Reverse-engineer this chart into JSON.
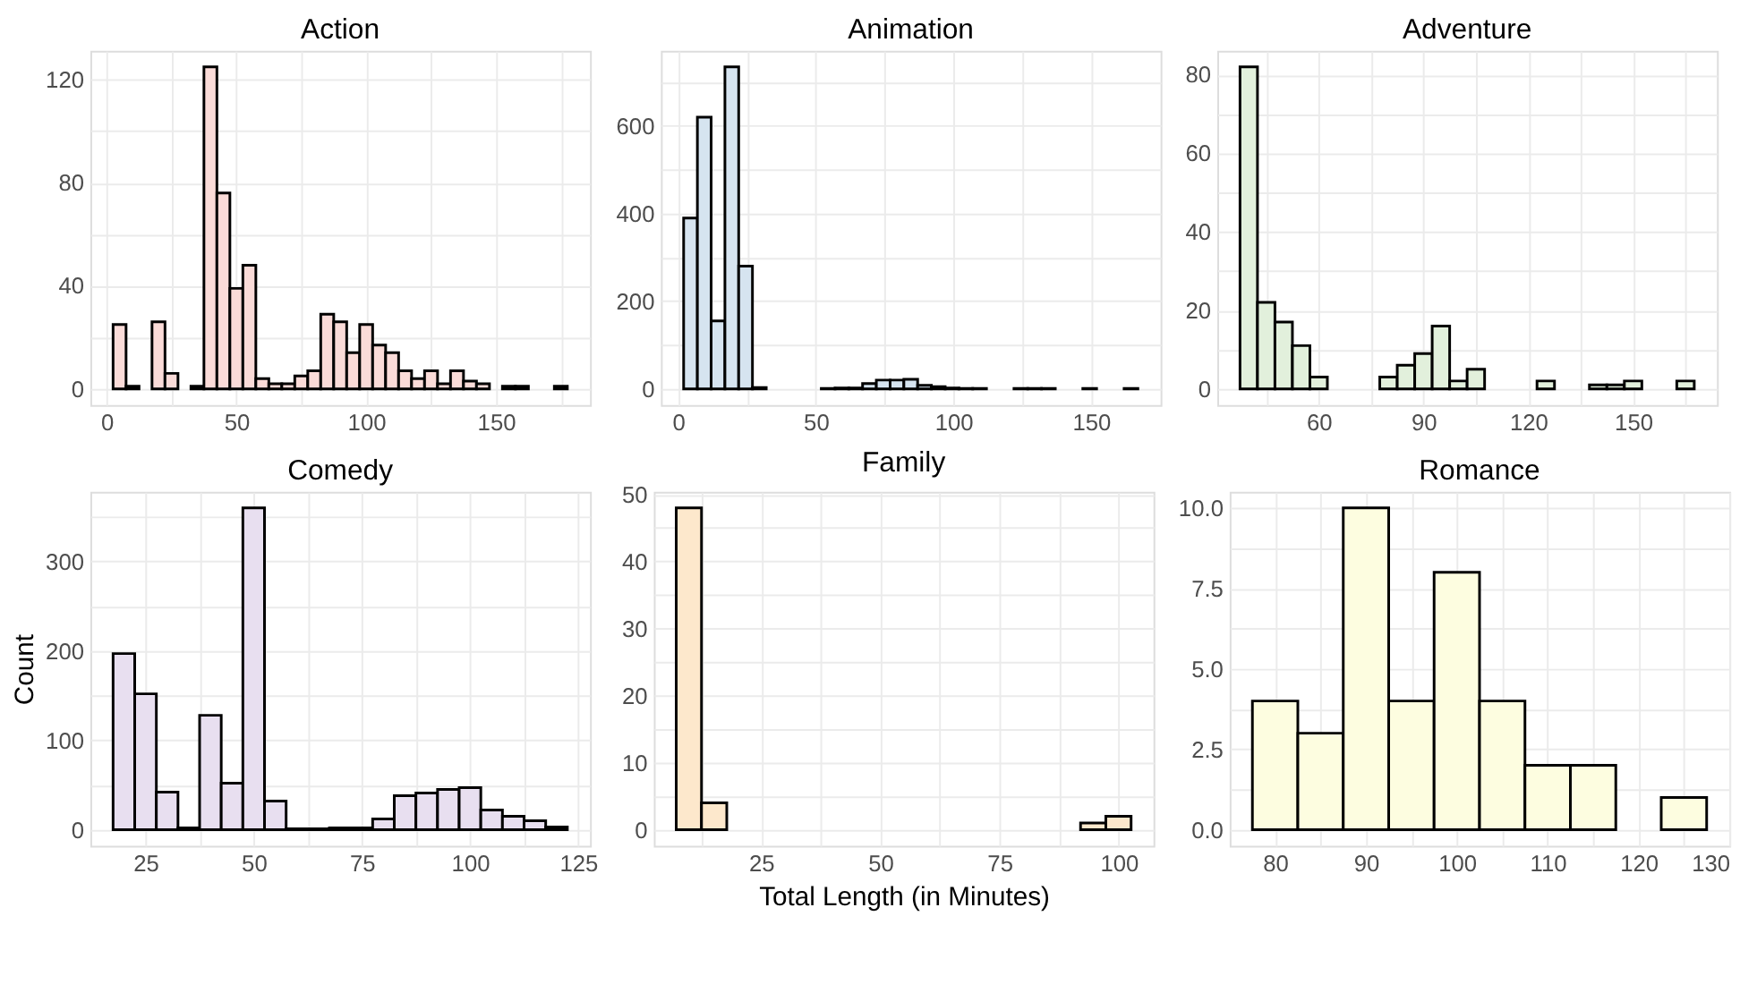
{
  "chart_data": [
    {
      "type": "histogram",
      "title": "Action",
      "color": "#fadbd8",
      "grid": true,
      "bins": [
        2.5,
        7.5,
        12.5,
        17.5,
        22.5,
        27.5,
        32.5,
        37.5,
        42.5,
        47.5,
        52.5,
        57.5,
        62.5,
        67.5,
        72.5,
        77.5,
        82.5,
        87.5,
        92.5,
        97.5,
        102.5,
        107.5,
        112.5,
        117.5,
        122.5,
        127.5,
        132.5,
        137.5,
        142.5,
        147.5,
        152.5,
        157.5,
        162.5,
        167.5,
        172.5,
        177.5
      ],
      "values": [
        25,
        1,
        0,
        26,
        6,
        0,
        1,
        125,
        76,
        39,
        48,
        4,
        2,
        2,
        5,
        7,
        29,
        26,
        14,
        25,
        17,
        14,
        7,
        4,
        7,
        2,
        7,
        3,
        2,
        0,
        1,
        1,
        0,
        0,
        1
      ],
      "xlim": [
        -6.25,
        186.25
      ],
      "xticks": [
        0,
        {
          "value": 25,
          "label": null
        },
        50,
        {
          "value": 75,
          "label": null
        },
        100,
        {
          "value": 125,
          "label": null
        },
        150,
        {
          "value": 175,
          "label": null
        }
      ],
      "ylim": [
        -6.25,
        131.25
      ],
      "yticks": [
        0,
        {
          "value": 20,
          "label": null
        },
        40,
        {
          "value": 60,
          "label": null
        },
        80,
        {
          "value": 100,
          "label": null
        },
        120
      ]
    },
    {
      "type": "histogram",
      "title": "Animation",
      "color": "#d6e4f0",
      "grid": true,
      "bins": [
        2,
        7,
        12,
        17,
        22,
        27,
        32,
        37,
        42,
        47,
        52,
        57,
        62,
        67,
        72,
        77,
        82,
        87,
        92,
        97,
        102,
        107,
        112,
        117,
        122,
        127,
        132,
        137,
        142,
        147,
        152,
        157,
        162,
        167
      ],
      "values": [
        390,
        620,
        155,
        735,
        280,
        3,
        0,
        0,
        0,
        0,
        1,
        2,
        2,
        12,
        20,
        20,
        22,
        8,
        5,
        2,
        1,
        1,
        0,
        0,
        1,
        1,
        1,
        0,
        0,
        1,
        0,
        0,
        1
      ],
      "xlim": [
        -6.25,
        175.25
      ],
      "xticks": [
        0,
        {
          "value": 25,
          "label": null
        },
        50,
        {
          "value": 75,
          "label": null
        },
        100,
        {
          "value": 125,
          "label": null
        },
        150
      ],
      "ylim": [
        -36.75,
        771.75
      ],
      "yticks": [
        0,
        {
          "value": 100,
          "label": null
        },
        200,
        {
          "value": 300,
          "label": null
        },
        400,
        {
          "value": 500,
          "label": null
        },
        600,
        {
          "value": 700,
          "label": null
        }
      ]
    },
    {
      "type": "histogram",
      "title": "Adventure",
      "color": "#e2f0dc",
      "grid": true,
      "bins": [
        37.5,
        42.5,
        47.5,
        52.5,
        57.5,
        62.5,
        67.5,
        72.5,
        77.5,
        82.5,
        87.5,
        92.5,
        97.5,
        102.5,
        107.5,
        112.5,
        117.5,
        122.5,
        127.5,
        132.5,
        137.5,
        142.5,
        147.5,
        152.5,
        157.5,
        162.5,
        167.5
      ],
      "values": [
        82,
        22,
        17,
        11,
        3,
        0,
        0,
        0,
        3,
        6,
        9,
        16,
        2,
        5,
        0,
        0,
        0,
        2,
        0,
        0,
        1,
        1,
        2,
        0,
        0,
        2
      ],
      "xlim": [
        31,
        174
      ],
      "xticks": [
        {
          "value": 45,
          "label": null
        },
        60,
        {
          "value": 75,
          "label": null
        },
        90,
        {
          "value": 105,
          "label": null
        },
        120,
        {
          "value": 135,
          "label": null
        },
        150,
        {
          "value": 165,
          "label": null
        }
      ],
      "ylim": [
        -4.1,
        86.1
      ],
      "yticks": [
        0,
        {
          "value": 10,
          "label": null
        },
        20,
        {
          "value": 30,
          "label": null
        },
        40,
        {
          "value": 50,
          "label": null
        },
        60,
        {
          "value": 70,
          "label": null
        },
        80
      ]
    },
    {
      "type": "histogram",
      "title": "Comedy",
      "ylabel": "Count",
      "color": "#e8dff0",
      "grid": true,
      "bins": [
        17.5,
        22.5,
        27.5,
        32.5,
        37.5,
        42.5,
        47.5,
        52.5,
        57.5,
        62.5,
        67.5,
        72.5,
        77.5,
        82.5,
        87.5,
        92.5,
        97.5,
        102.5,
        107.5,
        112.5,
        117.5,
        122.5
      ],
      "values": [
        197,
        152,
        42,
        2,
        128,
        52,
        360,
        32,
        1,
        1,
        2,
        2,
        12,
        38,
        41,
        45,
        47,
        22,
        15,
        10,
        3
      ],
      "xlim": [
        12.25,
        127.75
      ],
      "xticks": [
        25,
        {
          "value": 37.5,
          "label": null
        },
        50,
        {
          "value": 62.5,
          "label": null
        },
        75,
        {
          "value": 87.5,
          "label": null
        },
        100,
        {
          "value": 112.5,
          "label": null
        },
        125
      ],
      "ylim": [
        -18,
        378
      ],
      "yticks": [
        0,
        {
          "value": 50,
          "label": null
        },
        100,
        {
          "value": 150,
          "label": null
        },
        200,
        {
          "value": 250,
          "label": null
        },
        300,
        {
          "value": 350,
          "label": null
        }
      ]
    },
    {
      "type": "histogram",
      "title": "Family",
      "xlabel": "Total Length (in Minutes)",
      "color": "#fde8cc",
      "grid": true,
      "bins": [
        7.2,
        12.5,
        17.8,
        23.1,
        28.4,
        33.7,
        39,
        44.3,
        49.6,
        54.9,
        60.2,
        65.5,
        70.8,
        76.1,
        81.4,
        86.7,
        92,
        97.3,
        102.6
      ],
      "values": [
        48,
        4,
        0,
        0,
        0,
        0,
        0,
        0,
        0,
        0,
        0,
        0,
        0,
        0,
        0,
        0,
        1,
        2
      ],
      "xlim": [
        2.5,
        107.3
      ],
      "xticks": [
        {
          "value": 12.5,
          "label": null
        },
        25,
        {
          "value": 37.5,
          "label": null
        },
        50,
        {
          "value": 62.5,
          "label": null
        },
        75,
        {
          "value": 87.5,
          "label": null
        },
        100
      ],
      "ylim": [
        -2.4,
        50.4
      ],
      "yticks": [
        0,
        {
          "value": 5,
          "label": null
        },
        10,
        {
          "value": 15,
          "label": null
        },
        20,
        {
          "value": 25,
          "label": null
        },
        30,
        {
          "value": 35,
          "label": null
        },
        40,
        {
          "value": 45,
          "label": null
        },
        50
      ]
    },
    {
      "type": "histogram",
      "title": "Romance",
      "color": "#fdfde0",
      "grid": true,
      "bins": [
        77.5,
        82.5,
        87.5,
        92.5,
        97.5,
        102.5,
        107.5,
        112.5,
        117.5,
        122.5,
        127.5
      ],
      "values": [
        4,
        3,
        10,
        4,
        8,
        4,
        2,
        2,
        0,
        1
      ],
      "xlim": [
        75,
        130
      ],
      "xticks": [
        80,
        {
          "value": 85,
          "label": null
        },
        90,
        {
          "value": 95,
          "label": null
        },
        100,
        {
          "value": 105,
          "label": null
        },
        110,
        {
          "value": 115,
          "label": null
        },
        120,
        {
          "value": 125,
          "label": null
        },
        130
      ],
      "ylim": [
        -0.5,
        10.5
      ],
      "yticks": [
        {
          "value": 0,
          "label": "0.0"
        },
        {
          "value": 1.25,
          "label": null
        },
        {
          "value": 2.5,
          "label": "2.5"
        },
        {
          "value": 3.75,
          "label": null
        },
        {
          "value": 5,
          "label": "5.0"
        },
        {
          "value": 6.25,
          "label": null
        },
        {
          "value": 7.5,
          "label": "7.5"
        },
        {
          "value": 8.75,
          "label": null
        },
        {
          "value": 10,
          "label": "10.0"
        }
      ]
    }
  ]
}
